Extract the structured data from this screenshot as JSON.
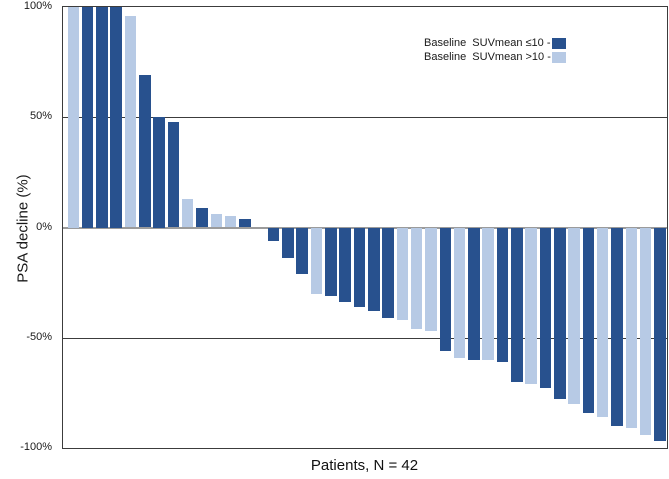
{
  "figure": {
    "x_title": "Patients, N = 42",
    "y_title": "PSA decline (%)"
  },
  "colors": {
    "suv_le10": "#28518E",
    "suv_gt10": "#B7CAE5",
    "zero_line": "#9B9B9B",
    "gridline": "#3C3C3C"
  },
  "chart_data": {
    "type": "bar",
    "subtype": "waterfall",
    "title": "",
    "xlabel": "Patients, N = 42",
    "ylabel": "PSA decline (%)",
    "ylim": [
      -100,
      100
    ],
    "grid": true,
    "legend_position": "top-right-inside",
    "yticks": [
      {
        "label": "100%",
        "value": 100
      },
      {
        "label": "50%",
        "value": 50
      },
      {
        "label": "0%",
        "value": 0
      },
      {
        "label": "-50%",
        "value": -50
      },
      {
        "label": "-100%",
        "value": -100
      }
    ],
    "legend": [
      {
        "label": "Baseline  SUVmean ≤10 -",
        "group": "suv_le10",
        "color": "#28518E"
      },
      {
        "label": "Baseline  SUVmean >10 -",
        "group": "suv_gt10",
        "color": "#B7CAE5"
      }
    ],
    "bars": [
      {
        "value": 100,
        "group": "suv_gt10"
      },
      {
        "value": 100,
        "group": "suv_le10"
      },
      {
        "value": 100,
        "group": "suv_le10"
      },
      {
        "value": 100,
        "group": "suv_le10"
      },
      {
        "value": 96,
        "group": "suv_gt10"
      },
      {
        "value": 69,
        "group": "suv_le10"
      },
      {
        "value": 50,
        "group": "suv_le10"
      },
      {
        "value": 48,
        "group": "suv_le10"
      },
      {
        "value": 13,
        "group": "suv_gt10"
      },
      {
        "value": 9,
        "group": "suv_le10"
      },
      {
        "value": 6,
        "group": "suv_gt10"
      },
      {
        "value": 5,
        "group": "suv_gt10"
      },
      {
        "value": 4,
        "group": "suv_le10"
      },
      {
        "value": 0,
        "group": "suv_le10"
      },
      {
        "value": -6,
        "group": "suv_le10"
      },
      {
        "value": -14,
        "group": "suv_le10"
      },
      {
        "value": -21,
        "group": "suv_le10"
      },
      {
        "value": -30,
        "group": "suv_gt10"
      },
      {
        "value": -31,
        "group": "suv_le10"
      },
      {
        "value": -34,
        "group": "suv_le10"
      },
      {
        "value": -36,
        "group": "suv_le10"
      },
      {
        "value": -38,
        "group": "suv_le10"
      },
      {
        "value": -41,
        "group": "suv_le10"
      },
      {
        "value": -42,
        "group": "suv_gt10"
      },
      {
        "value": -46,
        "group": "suv_gt10"
      },
      {
        "value": -47,
        "group": "suv_gt10"
      },
      {
        "value": -56,
        "group": "suv_le10"
      },
      {
        "value": -59,
        "group": "suv_gt10"
      },
      {
        "value": -60,
        "group": "suv_le10"
      },
      {
        "value": -60,
        "group": "suv_gt10"
      },
      {
        "value": -61,
        "group": "suv_le10"
      },
      {
        "value": -70,
        "group": "suv_le10"
      },
      {
        "value": -71,
        "group": "suv_gt10"
      },
      {
        "value": -73,
        "group": "suv_le10"
      },
      {
        "value": -78,
        "group": "suv_le10"
      },
      {
        "value": -80,
        "group": "suv_gt10"
      },
      {
        "value": -84,
        "group": "suv_le10"
      },
      {
        "value": -86,
        "group": "suv_gt10"
      },
      {
        "value": -90,
        "group": "suv_le10"
      },
      {
        "value": -91,
        "group": "suv_gt10"
      },
      {
        "value": -94,
        "group": "suv_gt10"
      },
      {
        "value": -97,
        "group": "suv_le10"
      }
    ]
  }
}
